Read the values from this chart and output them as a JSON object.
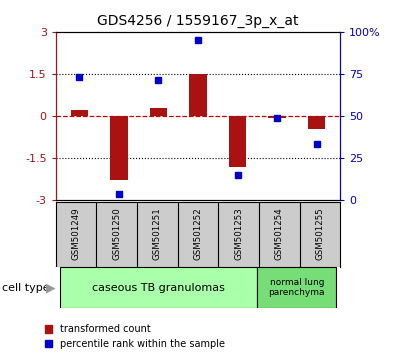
{
  "title": "GDS4256 / 1559167_3p_x_at",
  "samples": [
    "GSM501249",
    "GSM501250",
    "GSM501251",
    "GSM501252",
    "GSM501253",
    "GSM501254",
    "GSM501255"
  ],
  "red_bars": [
    0.22,
    -2.28,
    0.3,
    1.5,
    -1.82,
    -0.08,
    -0.48
  ],
  "blue_dots": [
    1.4,
    -2.78,
    1.3,
    2.72,
    -2.12,
    -0.08,
    -1.0
  ],
  "ylim": [
    -3,
    3
  ],
  "yticks_left": [
    -3,
    -1.5,
    0,
    1.5,
    3
  ],
  "ytick_labels_left": [
    "-3",
    "-1.5",
    "0",
    "1.5",
    "3"
  ],
  "ytick_labels_right": [
    "0",
    "25",
    "50",
    "75",
    "100%"
  ],
  "red_color": "#aa1111",
  "blue_color": "#0000cc",
  "dashed_red_color": "#cc0000",
  "group1_label": "caseous TB granulomas",
  "group2_label": "normal lung\nparenchyma",
  "cell_type_label": "cell type",
  "legend1_label": "transformed count",
  "legend2_label": "percentile rank within the sample",
  "bar_width": 0.45,
  "background_color": "#ffffff",
  "label_box_color": "#cccccc",
  "group1_bg": "#aaffaa",
  "group2_bg": "#77dd77"
}
